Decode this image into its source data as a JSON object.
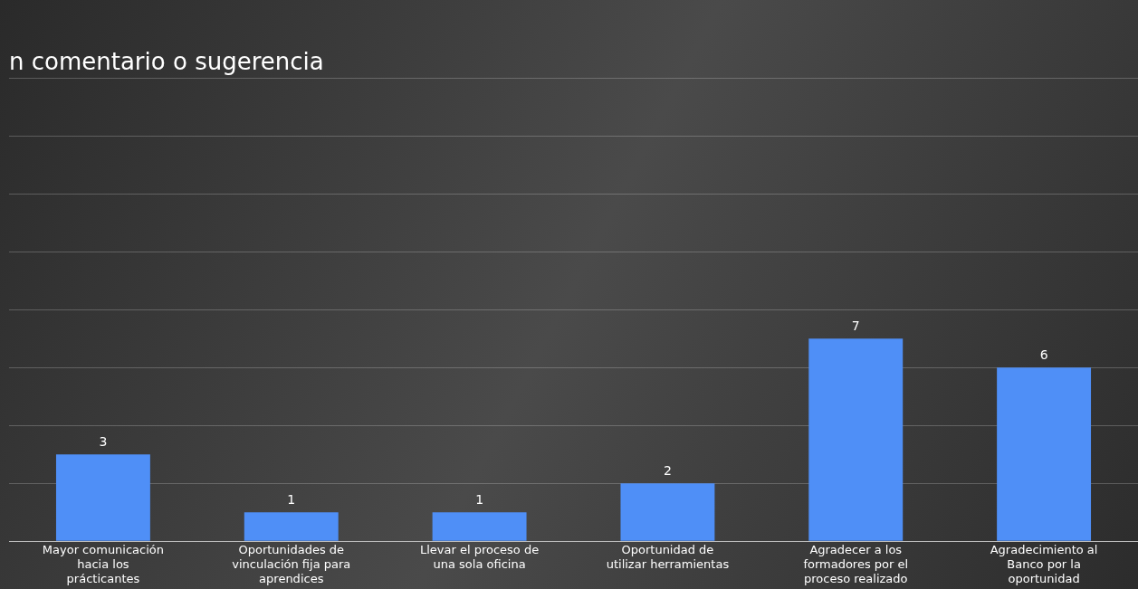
{
  "chart_data": {
    "type": "bar",
    "title": "n comentario o sugerencia",
    "categories": [
      "Mayor comunicación hacia los prácticantes",
      "Oportunidades de vinculación fija para aprendices",
      "Llevar el proceso de una sola oficina",
      "Oportunidad de utilizar herramientas",
      "Agradecer a los formadores por el proceso realizado",
      "Agradecimiento al Banco por la oportunidad"
    ],
    "values": [
      3,
      1,
      1,
      2,
      7,
      6
    ],
    "color": "#4f8ff7",
    "ylim": [
      0,
      16
    ],
    "yticks": [
      {
        "value": 0,
        "label": null
      },
      {
        "value": 2,
        "label": null
      },
      {
        "value": 4,
        "label": null
      },
      {
        "value": 6,
        "label": null
      },
      {
        "value": 8,
        "label": null
      },
      {
        "value": 10,
        "label": null
      },
      {
        "value": 12,
        "label": null
      },
      {
        "value": 14,
        "label": null
      },
      {
        "value": 16,
        "label": null
      }
    ],
    "tick_labels": "x",
    "grid": "y",
    "data_labels": true,
    "legend": false
  }
}
